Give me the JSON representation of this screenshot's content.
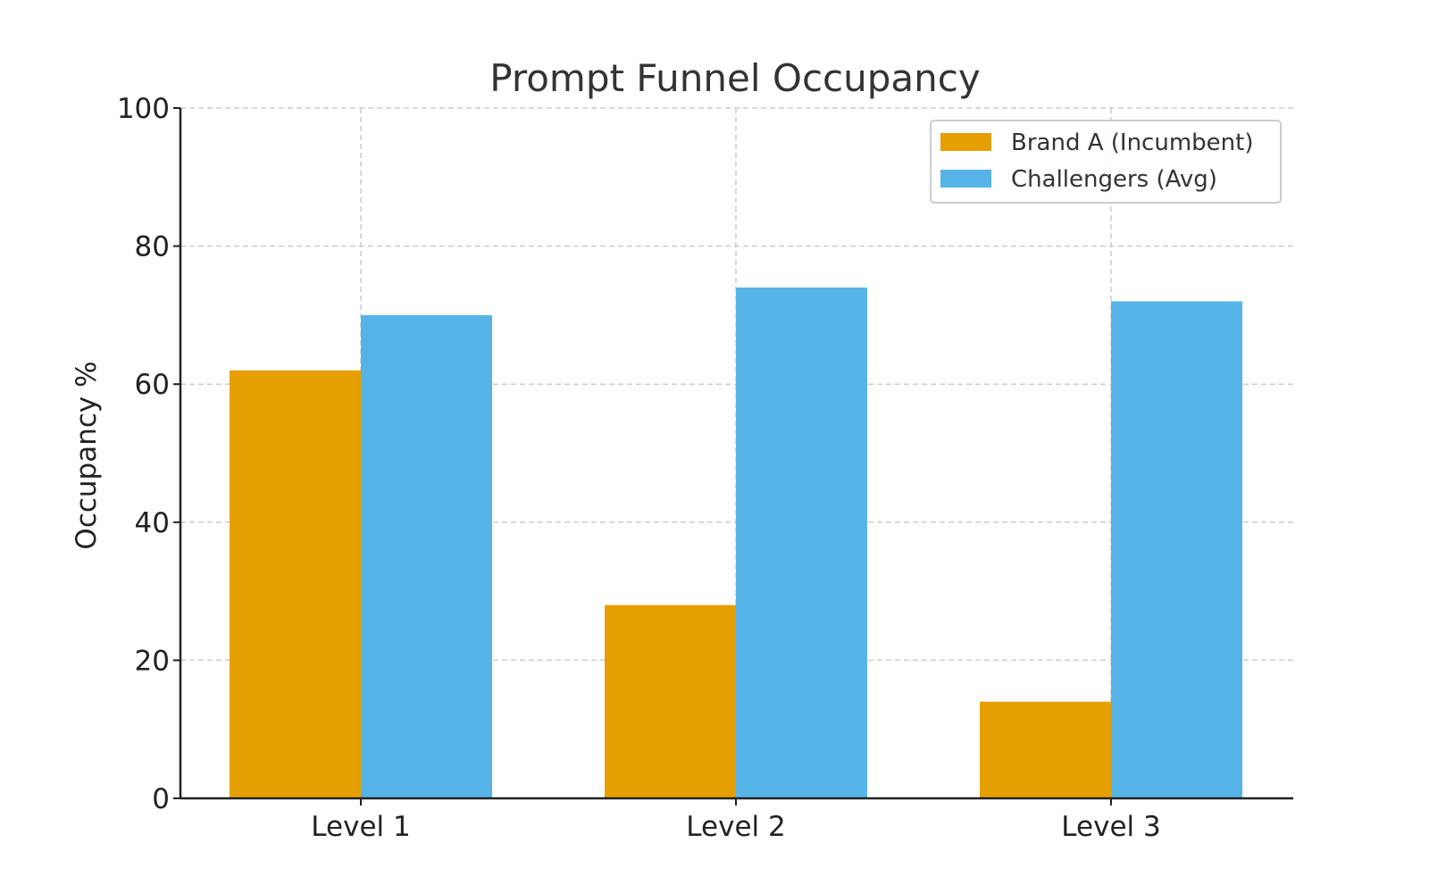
{
  "chart_data": {
    "type": "bar",
    "title": "Prompt Funnel Occupancy",
    "xlabel": "",
    "ylabel": "Occupancy %",
    "categories": [
      "Level 1",
      "Level 2",
      "Level 3"
    ],
    "series": [
      {
        "name": "Brand A (Incumbent)",
        "color": "#E69F00",
        "values": [
          62,
          28,
          14
        ]
      },
      {
        "name": "Challengers (Avg)",
        "color": "#56B4E9",
        "values": [
          70,
          74,
          72
        ]
      }
    ],
    "ylim": [
      0,
      100
    ],
    "yticks": [
      0,
      20,
      40,
      60,
      80,
      100
    ],
    "grid": true,
    "legend_position": "top-right"
  }
}
